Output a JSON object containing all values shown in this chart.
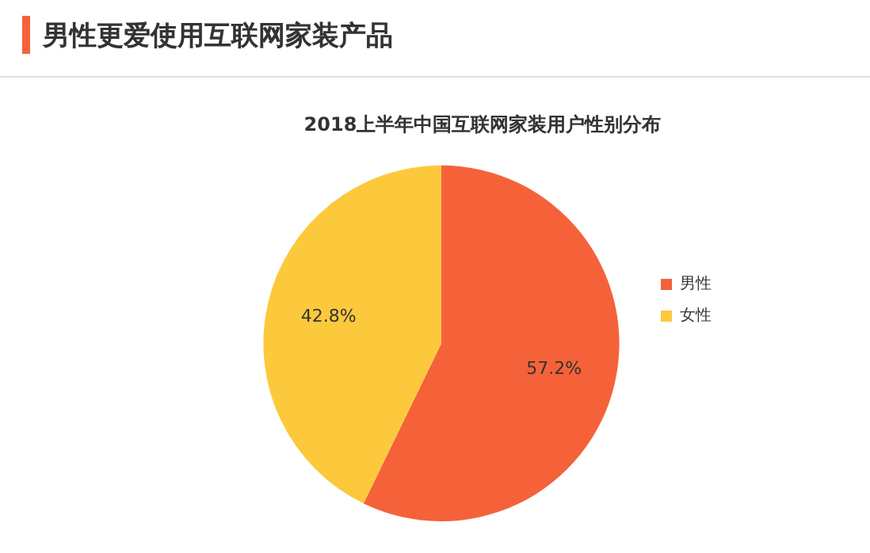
{
  "chart_data": {
    "type": "pie",
    "title": "男性更爱使用互联网家装产品",
    "subtitle": "2018上半年中国互联网家装用户性别分布",
    "categories": [
      "男性",
      "女性"
    ],
    "values": [
      57.2,
      42.8
    ],
    "value_labels": [
      "57.2%",
      "42.8%"
    ],
    "colors": [
      "#f5623a",
      "#fcc93c"
    ],
    "legend": "right"
  }
}
